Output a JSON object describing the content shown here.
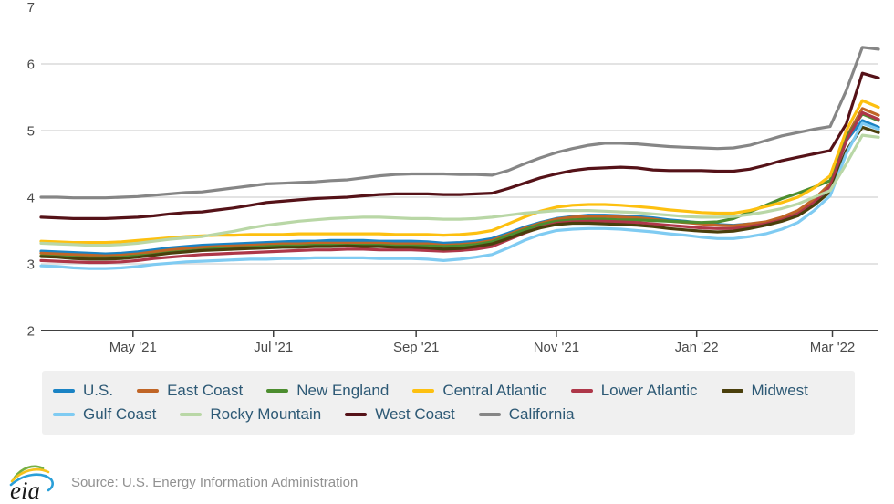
{
  "chart_data": {
    "type": "line",
    "title": "",
    "xlabel": "",
    "ylabel": "",
    "grid": true,
    "legend_position": "bottom",
    "y_axis": {
      "range": [
        2,
        7
      ],
      "ticks": [
        2,
        3,
        4,
        5,
        6,
        7
      ]
    },
    "x_axis": {
      "total_weeks": 52,
      "ticks": [
        {
          "label": "May '21",
          "week": 5.71
        },
        {
          "label": "Jul '21",
          "week": 14.43
        },
        {
          "label": "Sep '21",
          "week": 23.29
        },
        {
          "label": "Nov '21",
          "week": 32.0
        },
        {
          "label": "Jan '22",
          "week": 40.71
        },
        {
          "label": "Mar '22",
          "week": 49.14
        }
      ]
    },
    "series": [
      {
        "name": "U.S.",
        "color": "#1a83c4",
        "values": [
          3.19,
          3.18,
          3.17,
          3.16,
          3.15,
          3.16,
          3.18,
          3.21,
          3.24,
          3.26,
          3.28,
          3.29,
          3.3,
          3.31,
          3.32,
          3.33,
          3.34,
          3.34,
          3.35,
          3.35,
          3.35,
          3.34,
          3.34,
          3.34,
          3.33,
          3.31,
          3.32,
          3.34,
          3.38,
          3.46,
          3.55,
          3.62,
          3.68,
          3.71,
          3.73,
          3.73,
          3.72,
          3.71,
          3.69,
          3.66,
          3.64,
          3.61,
          3.59,
          3.58,
          3.6,
          3.62,
          3.68,
          3.76,
          3.92,
          4.15,
          4.85,
          5.15,
          5.05
        ]
      },
      {
        "name": "East Coast",
        "color": "#c06526",
        "values": [
          3.16,
          3.15,
          3.14,
          3.13,
          3.12,
          3.13,
          3.15,
          3.18,
          3.21,
          3.23,
          3.25,
          3.26,
          3.27,
          3.28,
          3.29,
          3.3,
          3.3,
          3.31,
          3.31,
          3.31,
          3.31,
          3.31,
          3.3,
          3.3,
          3.3,
          3.28,
          3.29,
          3.31,
          3.35,
          3.44,
          3.53,
          3.61,
          3.67,
          3.7,
          3.71,
          3.71,
          3.7,
          3.69,
          3.67,
          3.64,
          3.62,
          3.6,
          3.58,
          3.57,
          3.6,
          3.63,
          3.7,
          3.8,
          3.97,
          4.2,
          4.9,
          5.33,
          5.23
        ]
      },
      {
        "name": "New England",
        "color": "#4c8d2f",
        "values": [
          3.12,
          3.11,
          3.1,
          3.09,
          3.09,
          3.1,
          3.12,
          3.14,
          3.17,
          3.19,
          3.21,
          3.23,
          3.24,
          3.25,
          3.26,
          3.27,
          3.27,
          3.28,
          3.28,
          3.28,
          3.28,
          3.28,
          3.27,
          3.27,
          3.27,
          3.26,
          3.27,
          3.29,
          3.33,
          3.42,
          3.51,
          3.59,
          3.64,
          3.66,
          3.67,
          3.67,
          3.66,
          3.66,
          3.65,
          3.64,
          3.63,
          3.62,
          3.63,
          3.68,
          3.78,
          3.88,
          3.98,
          4.06,
          4.15,
          4.25,
          4.9,
          5.25,
          5.15
        ]
      },
      {
        "name": "Central Atlantic",
        "color": "#fdc010",
        "values": [
          3.34,
          3.33,
          3.32,
          3.32,
          3.32,
          3.33,
          3.35,
          3.37,
          3.39,
          3.41,
          3.42,
          3.43,
          3.43,
          3.44,
          3.44,
          3.44,
          3.45,
          3.45,
          3.45,
          3.45,
          3.45,
          3.45,
          3.44,
          3.44,
          3.44,
          3.43,
          3.44,
          3.46,
          3.5,
          3.6,
          3.7,
          3.79,
          3.85,
          3.88,
          3.89,
          3.89,
          3.88,
          3.86,
          3.84,
          3.81,
          3.79,
          3.77,
          3.76,
          3.76,
          3.8,
          3.86,
          3.92,
          4.0,
          4.14,
          4.32,
          5.0,
          5.45,
          5.35
        ]
      },
      {
        "name": "Lower Atlantic",
        "color": "#ae3749",
        "values": [
          3.05,
          3.04,
          3.03,
          3.02,
          3.02,
          3.03,
          3.05,
          3.08,
          3.1,
          3.12,
          3.14,
          3.15,
          3.16,
          3.17,
          3.18,
          3.19,
          3.2,
          3.21,
          3.21,
          3.22,
          3.22,
          3.21,
          3.21,
          3.21,
          3.2,
          3.19,
          3.2,
          3.22,
          3.26,
          3.36,
          3.46,
          3.55,
          3.61,
          3.63,
          3.64,
          3.64,
          3.63,
          3.62,
          3.6,
          3.58,
          3.56,
          3.54,
          3.53,
          3.53,
          3.56,
          3.6,
          3.66,
          3.75,
          3.92,
          4.16,
          4.85,
          5.27,
          5.17
        ]
      },
      {
        "name": "Midwest",
        "color": "#4a3f0c",
        "values": [
          3.11,
          3.1,
          3.08,
          3.07,
          3.07,
          3.08,
          3.1,
          3.13,
          3.16,
          3.18,
          3.2,
          3.21,
          3.22,
          3.23,
          3.24,
          3.25,
          3.25,
          3.26,
          3.26,
          3.27,
          3.26,
          3.26,
          3.25,
          3.25,
          3.24,
          3.22,
          3.23,
          3.26,
          3.3,
          3.38,
          3.47,
          3.54,
          3.59,
          3.61,
          3.61,
          3.6,
          3.59,
          3.58,
          3.56,
          3.53,
          3.51,
          3.49,
          3.48,
          3.49,
          3.53,
          3.58,
          3.64,
          3.72,
          3.88,
          4.08,
          4.7,
          5.05,
          4.97
        ]
      },
      {
        "name": "Gulf Coast",
        "color": "#7fcbf2",
        "values": [
          2.97,
          2.96,
          2.94,
          2.93,
          2.93,
          2.94,
          2.96,
          2.99,
          3.01,
          3.03,
          3.04,
          3.05,
          3.06,
          3.07,
          3.07,
          3.08,
          3.08,
          3.09,
          3.09,
          3.09,
          3.09,
          3.08,
          3.08,
          3.08,
          3.07,
          3.05,
          3.07,
          3.1,
          3.14,
          3.24,
          3.35,
          3.44,
          3.5,
          3.52,
          3.53,
          3.53,
          3.52,
          3.5,
          3.48,
          3.45,
          3.43,
          3.4,
          3.38,
          3.38,
          3.41,
          3.45,
          3.52,
          3.62,
          3.8,
          4.02,
          4.65,
          5.11,
          5.02
        ]
      },
      {
        "name": "Rocky Mountain",
        "color": "#b9d7a6",
        "values": [
          3.31,
          3.3,
          3.29,
          3.28,
          3.28,
          3.29,
          3.31,
          3.34,
          3.37,
          3.39,
          3.41,
          3.45,
          3.49,
          3.54,
          3.58,
          3.61,
          3.64,
          3.66,
          3.68,
          3.69,
          3.7,
          3.7,
          3.69,
          3.68,
          3.68,
          3.67,
          3.67,
          3.68,
          3.7,
          3.73,
          3.76,
          3.78,
          3.8,
          3.8,
          3.8,
          3.79,
          3.78,
          3.77,
          3.75,
          3.73,
          3.71,
          3.7,
          3.7,
          3.71,
          3.74,
          3.78,
          3.83,
          3.9,
          4.0,
          4.1,
          4.5,
          4.93,
          4.9
        ]
      },
      {
        "name": "West Coast",
        "color": "#551218",
        "values": [
          3.7,
          3.69,
          3.68,
          3.68,
          3.68,
          3.69,
          3.7,
          3.72,
          3.75,
          3.77,
          3.78,
          3.81,
          3.84,
          3.88,
          3.92,
          3.94,
          3.96,
          3.98,
          3.99,
          4.0,
          4.02,
          4.04,
          4.05,
          4.05,
          4.05,
          4.04,
          4.04,
          4.05,
          4.06,
          4.13,
          4.21,
          4.29,
          4.35,
          4.4,
          4.43,
          4.44,
          4.45,
          4.44,
          4.41,
          4.4,
          4.4,
          4.4,
          4.39,
          4.39,
          4.42,
          4.48,
          4.55,
          4.6,
          4.65,
          4.7,
          5.1,
          5.86,
          5.79
        ]
      },
      {
        "name": "California",
        "color": "#868686",
        "values": [
          4.0,
          4.0,
          3.99,
          3.99,
          3.99,
          4.0,
          4.01,
          4.03,
          4.05,
          4.07,
          4.08,
          4.11,
          4.14,
          4.17,
          4.2,
          4.21,
          4.22,
          4.23,
          4.25,
          4.26,
          4.29,
          4.32,
          4.34,
          4.35,
          4.35,
          4.35,
          4.34,
          4.34,
          4.33,
          4.4,
          4.5,
          4.59,
          4.67,
          4.73,
          4.78,
          4.81,
          4.81,
          4.8,
          4.78,
          4.76,
          4.75,
          4.74,
          4.73,
          4.74,
          4.78,
          4.85,
          4.92,
          4.97,
          5.02,
          5.06,
          5.6,
          6.25,
          6.22
        ]
      }
    ]
  },
  "legend": {
    "items": [
      {
        "label": "U.S."
      },
      {
        "label": "East Coast"
      },
      {
        "label": "New England"
      },
      {
        "label": "Central Atlantic"
      },
      {
        "label": "Lower Atlantic"
      },
      {
        "label": "Midwest"
      },
      {
        "label": "Gulf Coast"
      },
      {
        "label": "Rocky Mountain"
      },
      {
        "label": "West Coast"
      },
      {
        "label": "California"
      }
    ]
  },
  "footer": {
    "logo_text": "eia",
    "source_text": "Source: U.S. Energy Information Administration"
  },
  "style": {
    "grid_color": "#d2d2d2",
    "axis_color": "#404040",
    "tick_label_color": "#4a4a4a",
    "legend_text_color": "#2d5975",
    "legend_bg": "#f0f0f0"
  }
}
